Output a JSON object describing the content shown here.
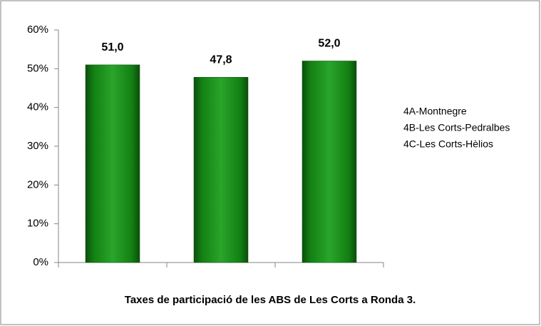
{
  "chart_data": {
    "type": "bar",
    "title": "Taxes de participació de les ABS de Les Corts a Ronda 3.",
    "categories": [
      "4A-Montnegre",
      "4B-Les Corts-Pedralbes",
      "4C-Les Corts-Hèlios"
    ],
    "values": [
      51.0,
      47.8,
      52.0
    ],
    "value_labels": [
      "51,0",
      "47,8",
      "52,0"
    ],
    "color": "#1e8c1e",
    "ylim": [
      0,
      60
    ],
    "yticks": [
      {
        "value": 0,
        "label": "0%"
      },
      {
        "value": 10,
        "label": "10%"
      },
      {
        "value": 20,
        "label": "20%"
      },
      {
        "value": 30,
        "label": "30%"
      },
      {
        "value": 40,
        "label": "40%"
      },
      {
        "value": 50,
        "label": "50%"
      },
      {
        "value": 60,
        "label": "60%"
      }
    ],
    "grid": false,
    "legend": "right"
  }
}
